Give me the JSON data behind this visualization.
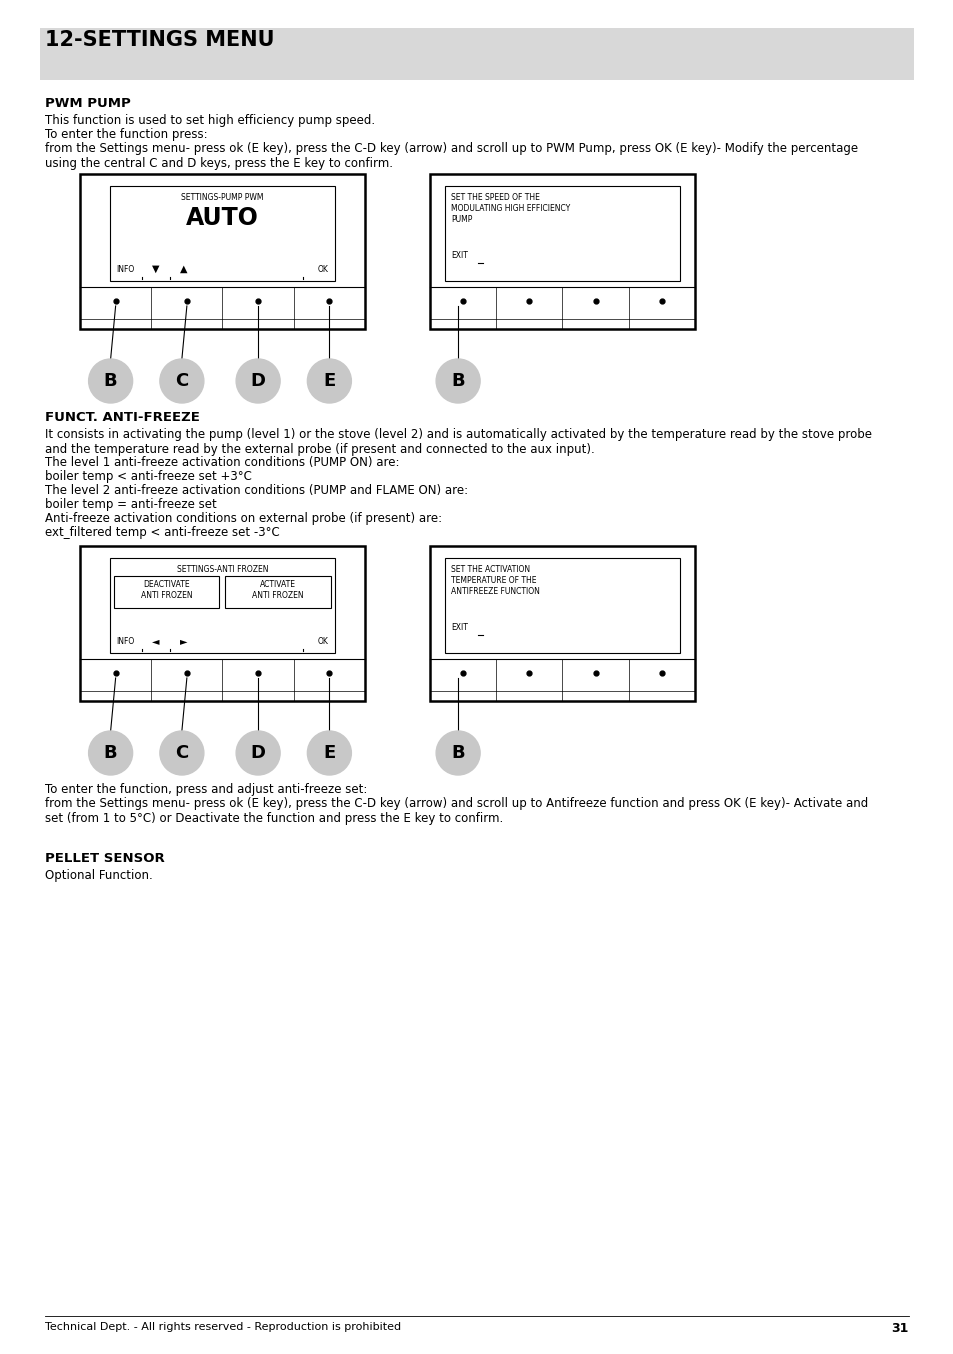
{
  "title": "12-SETTINGS MENU",
  "title_bg": "#d8d8d8",
  "page_bg": "#ffffff",
  "section1_title": "PWM PUMP",
  "section1_text1": "This function is used to set high efficiency pump speed.",
  "section1_text2": "To enter the function press:",
  "section1_text3": "from the Settings menu- press ok (E key), press the C-D key (arrow) and scroll up to PWM Pump, press OK (E key)- Modify the percentage\nusing the central C and D keys, press the E key to confirm.",
  "diag1_left_title": "SETTINGS-PUMP PWM",
  "diag1_left_main": "AUTO",
  "diag1_left_info": "INFO",
  "diag1_left_down": "▼",
  "diag1_left_up": "▲",
  "diag1_left_ok": "OK",
  "diag1_right_line1": "SET THE SPEED OF THE",
  "diag1_right_line2": "MODULATING HIGH EFFICIENCY",
  "diag1_right_line3": "PUMP",
  "diag1_right_exit": "EXIT",
  "labels1": [
    "B",
    "C",
    "D",
    "E",
    "B"
  ],
  "section2_title": "FUNCT. ANTI-FREEZE",
  "section2_text1": "It consists in activating the pump (level 1) or the stove (level 2) and is automatically activated by the temperature read by the stove probe\nand the temperature read by the external probe (if present and connected to the aux input).",
  "section2_text2": "The level 1 anti-freeze activation conditions (PUMP ON) are:",
  "section2_text3": "boiler temp < anti-freeze set +3°C",
  "section2_text4": "The level 2 anti-freeze activation conditions (PUMP and FLAME ON) are:",
  "section2_text5": "boiler temp = anti-freeze set",
  "section2_text6": "Anti-freeze activation conditions on external probe (if present) are:",
  "section2_text7": "ext_filtered temp < anti-freeze set -3°C",
  "diag2_left_title": "SETTINGS-ANTI FROZEN",
  "diag2_left_btn1": "DEACTIVATE",
  "diag2_left_btn1b": "ANTI FROZEN",
  "diag2_left_btn2": "ACTIVATE",
  "diag2_left_btn2b": "ANTI FROZEN",
  "diag2_left_info": "INFO",
  "diag2_left_left": "◄",
  "diag2_left_right": "►",
  "diag2_left_ok": "OK",
  "diag2_right_line1": "SET THE ACTIVATION",
  "diag2_right_line2": "TEMPERATURE OF THE",
  "diag2_right_line3": "ANTIFREEZE FUNCTION",
  "diag2_right_exit": "EXIT",
  "labels2": [
    "B",
    "C",
    "D",
    "E",
    "B"
  ],
  "section3_text1": "To enter the function, press and adjust anti-freeze set:",
  "section3_text2": "from the Settings menu- press ok (E key), press the C-D key (arrow) and scroll up to Antifreeze function and press OK (E key)- Activate and\nset (from 1 to 5°C) or Deactivate the function and press the E key to confirm.",
  "section4_title": "PELLET SENSOR",
  "section4_text1": "Optional Function.",
  "footer_text": "Technical Dept. - All rights reserved - Reproduction is prohibited",
  "footer_page": "31"
}
